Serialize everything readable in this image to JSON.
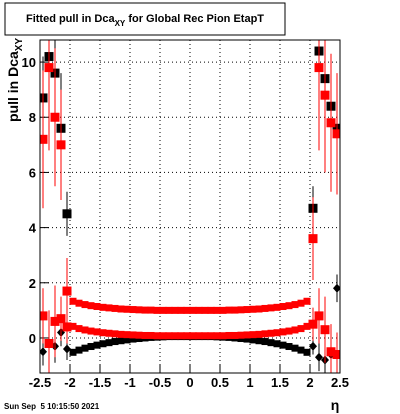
{
  "chart_data": {
    "type": "scatter",
    "title": "Fitted pull in Dca",
    "title_subscript": "XY",
    "title_suffix": " for Global Rec Pion EtapT",
    "y_label": "pull in Dca",
    "y_label_subscript": "XY",
    "x_label": "η",
    "timestamp": "Sun Sep  5 10:15:50 2021",
    "xlim": [
      -2.5,
      2.5
    ],
    "ylim": [
      -1.27,
      10.8
    ],
    "xticks": [
      -2.5,
      -2,
      -1.5,
      -1,
      -0.5,
      0,
      0.5,
      1,
      1.5,
      2,
      2.5
    ],
    "yticks": [
      0,
      2,
      4,
      6,
      8,
      10
    ],
    "grid": true,
    "x": [
      -2.45,
      -2.35,
      -2.25,
      -2.15,
      -2.05,
      -1.95,
      -1.85,
      -1.75,
      -1.65,
      -1.55,
      -1.45,
      -1.35,
      -1.25,
      -1.15,
      -1.05,
      -0.95,
      -0.85,
      -0.75,
      -0.65,
      -0.55,
      -0.45,
      -0.35,
      -0.25,
      -0.15,
      -0.05,
      0.05,
      0.15,
      0.25,
      0.35,
      0.45,
      0.55,
      0.65,
      0.75,
      0.85,
      0.95,
      1.05,
      1.15,
      1.25,
      1.35,
      1.45,
      1.55,
      1.65,
      1.75,
      1.85,
      1.95,
      2.05,
      2.15,
      2.25,
      2.35,
      2.45
    ],
    "series": [
      {
        "color": "#000000",
        "marker": "square",
        "values": [
          8.7,
          10.2,
          9.6,
          7.6,
          4.5,
          -0.52,
          -0.44,
          -0.37,
          -0.31,
          -0.26,
          -0.21,
          -0.17,
          -0.13,
          -0.1,
          -0.07,
          -0.04,
          -0.02,
          0.0,
          0.02,
          0.03,
          0.04,
          0.05,
          0.05,
          0.05,
          0.05,
          0.05,
          0.05,
          0.05,
          0.05,
          0.04,
          0.03,
          0.02,
          0.0,
          -0.02,
          -0.04,
          -0.07,
          -0.1,
          -0.13,
          -0.17,
          -0.21,
          -0.26,
          -0.31,
          -0.37,
          -0.44,
          -0.52,
          4.7,
          10.4,
          9.4,
          8.4,
          7.6
        ],
        "errors": [
          1.5,
          2.0,
          2.2,
          2.0,
          0.8,
          0.02,
          0.02,
          0.02,
          0.02,
          0.02,
          0.02,
          0.02,
          0.02,
          0.02,
          0.02,
          0.02,
          0.02,
          0.02,
          0.02,
          0.02,
          0.02,
          0.02,
          0.02,
          0.02,
          0.02,
          0.02,
          0.02,
          0.02,
          0.02,
          0.02,
          0.02,
          0.02,
          0.02,
          0.02,
          0.02,
          0.02,
          0.02,
          0.02,
          0.02,
          0.02,
          0.02,
          0.02,
          0.02,
          0.02,
          0.02,
          0.8,
          2.0,
          2.0,
          1.8,
          1.5
        ]
      },
      {
        "color": "#000000",
        "marker": "diamond",
        "values": [
          -0.5,
          -0.2,
          -0.3,
          0.2,
          -0.4,
          null,
          null,
          null,
          null,
          null,
          null,
          null,
          null,
          null,
          null,
          null,
          null,
          null,
          null,
          null,
          null,
          null,
          null,
          null,
          null,
          null,
          null,
          null,
          null,
          null,
          null,
          null,
          null,
          null,
          null,
          null,
          null,
          null,
          null,
          null,
          null,
          null,
          null,
          null,
          null,
          -0.3,
          -0.7,
          -0.8,
          -0.6,
          1.8
        ],
        "errors": [
          0.5,
          0.6,
          0.6,
          0.5,
          0.4,
          null,
          null,
          null,
          null,
          null,
          null,
          null,
          null,
          null,
          null,
          null,
          null,
          null,
          null,
          null,
          null,
          null,
          null,
          null,
          null,
          null,
          null,
          null,
          null,
          null,
          null,
          null,
          null,
          null,
          null,
          null,
          null,
          null,
          null,
          null,
          null,
          null,
          null,
          null,
          null,
          0.3,
          0.5,
          0.6,
          0.5,
          0.5
        ]
      },
      {
        "color": "#ff0000",
        "marker": "square",
        "values": [
          0.8,
          -0.2,
          0.6,
          0.7,
          0.4,
          0.42,
          0.34,
          0.29,
          0.25,
          0.22,
          0.19,
          0.17,
          0.15,
          0.13,
          0.12,
          0.11,
          0.1,
          0.09,
          0.09,
          0.08,
          0.08,
          0.08,
          0.08,
          0.08,
          0.08,
          0.08,
          0.08,
          0.08,
          0.08,
          0.08,
          0.08,
          0.09,
          0.09,
          0.1,
          0.11,
          0.12,
          0.13,
          0.15,
          0.17,
          0.19,
          0.22,
          0.25,
          0.29,
          0.34,
          0.42,
          0.5,
          0.8,
          0.3,
          -0.5,
          -0.6
        ],
        "errors": [
          1.0,
          1.2,
          1.3,
          0.8,
          0.6,
          0.02,
          0.02,
          0.02,
          0.02,
          0.02,
          0.02,
          0.02,
          0.02,
          0.02,
          0.02,
          0.02,
          0.02,
          0.02,
          0.02,
          0.02,
          0.02,
          0.02,
          0.02,
          0.02,
          0.02,
          0.02,
          0.02,
          0.02,
          0.02,
          0.02,
          0.02,
          0.02,
          0.02,
          0.02,
          0.02,
          0.02,
          0.02,
          0.02,
          0.02,
          0.02,
          0.02,
          0.02,
          0.02,
          0.02,
          0.02,
          0.6,
          1.0,
          1.2,
          1.0,
          0.8
        ]
      },
      {
        "color": "#ff0000",
        "marker": "square",
        "values": [
          7.2,
          9.8,
          8.0,
          7.0,
          1.7,
          1.33,
          1.26,
          1.21,
          1.17,
          1.14,
          1.11,
          1.09,
          1.07,
          1.05,
          1.04,
          1.03,
          1.02,
          1.01,
          1.01,
          1.0,
          1.0,
          1.0,
          1.0,
          1.0,
          1.0,
          1.0,
          1.0,
          1.0,
          1.0,
          1.0,
          1.0,
          1.01,
          1.01,
          1.02,
          1.03,
          1.04,
          1.05,
          1.07,
          1.09,
          1.11,
          1.14,
          1.17,
          1.21,
          1.26,
          1.33,
          3.6,
          9.8,
          8.8,
          7.8,
          7.4
        ],
        "errors": [
          2.5,
          3.0,
          2.5,
          2.0,
          1.2,
          0.02,
          0.02,
          0.02,
          0.02,
          0.02,
          0.02,
          0.02,
          0.02,
          0.02,
          0.02,
          0.02,
          0.02,
          0.02,
          0.02,
          0.02,
          0.02,
          0.02,
          0.02,
          0.02,
          0.02,
          0.02,
          0.02,
          0.02,
          0.02,
          0.02,
          0.02,
          0.02,
          0.02,
          0.02,
          0.02,
          0.02,
          0.02,
          0.02,
          0.02,
          0.02,
          0.02,
          0.02,
          0.02,
          0.02,
          0.02,
          1.5,
          3.0,
          2.8,
          2.5,
          2.2
        ]
      }
    ]
  }
}
